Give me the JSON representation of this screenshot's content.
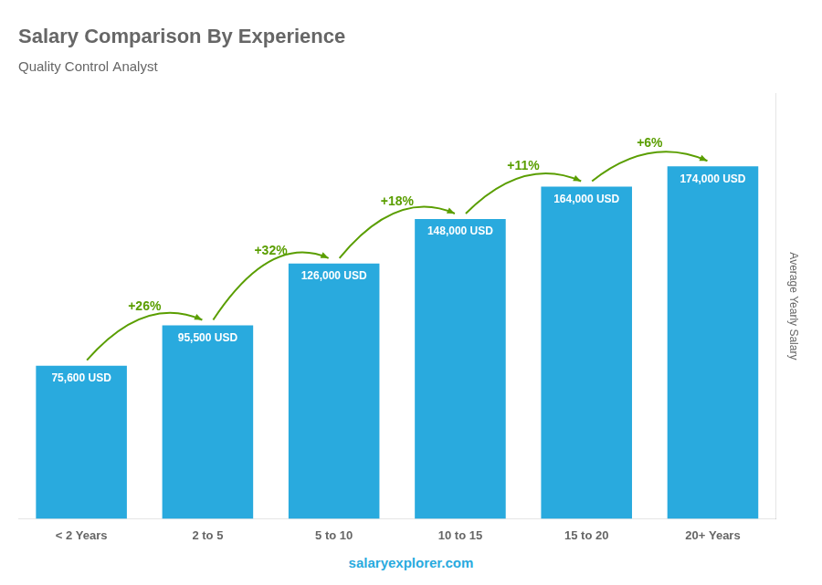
{
  "chart_data": {
    "type": "bar",
    "title": "Salary Comparison By Experience",
    "subtitle": "Quality Control Analyst",
    "ylabel": "Average Yearly Salary",
    "footer": "salaryexplorer.com",
    "categories": [
      "< 2 Years",
      "2 to 5",
      "5 to 10",
      "10 to 15",
      "15 to 20",
      "20+ Years"
    ],
    "values": [
      75600,
      95500,
      126000,
      148000,
      164000,
      174000
    ],
    "value_labels": [
      "75,600 USD",
      "95,500 USD",
      "126,000 USD",
      "148,000 USD",
      "164,000 USD",
      "174,000 USD"
    ],
    "data_labels": true,
    "annotations": [
      "+26%",
      "+32%",
      "+18%",
      "+11%",
      "+6%"
    ],
    "color": "#29AADE",
    "ylim": [
      0,
      210000
    ],
    "grid": false,
    "tick_labels": "x"
  }
}
